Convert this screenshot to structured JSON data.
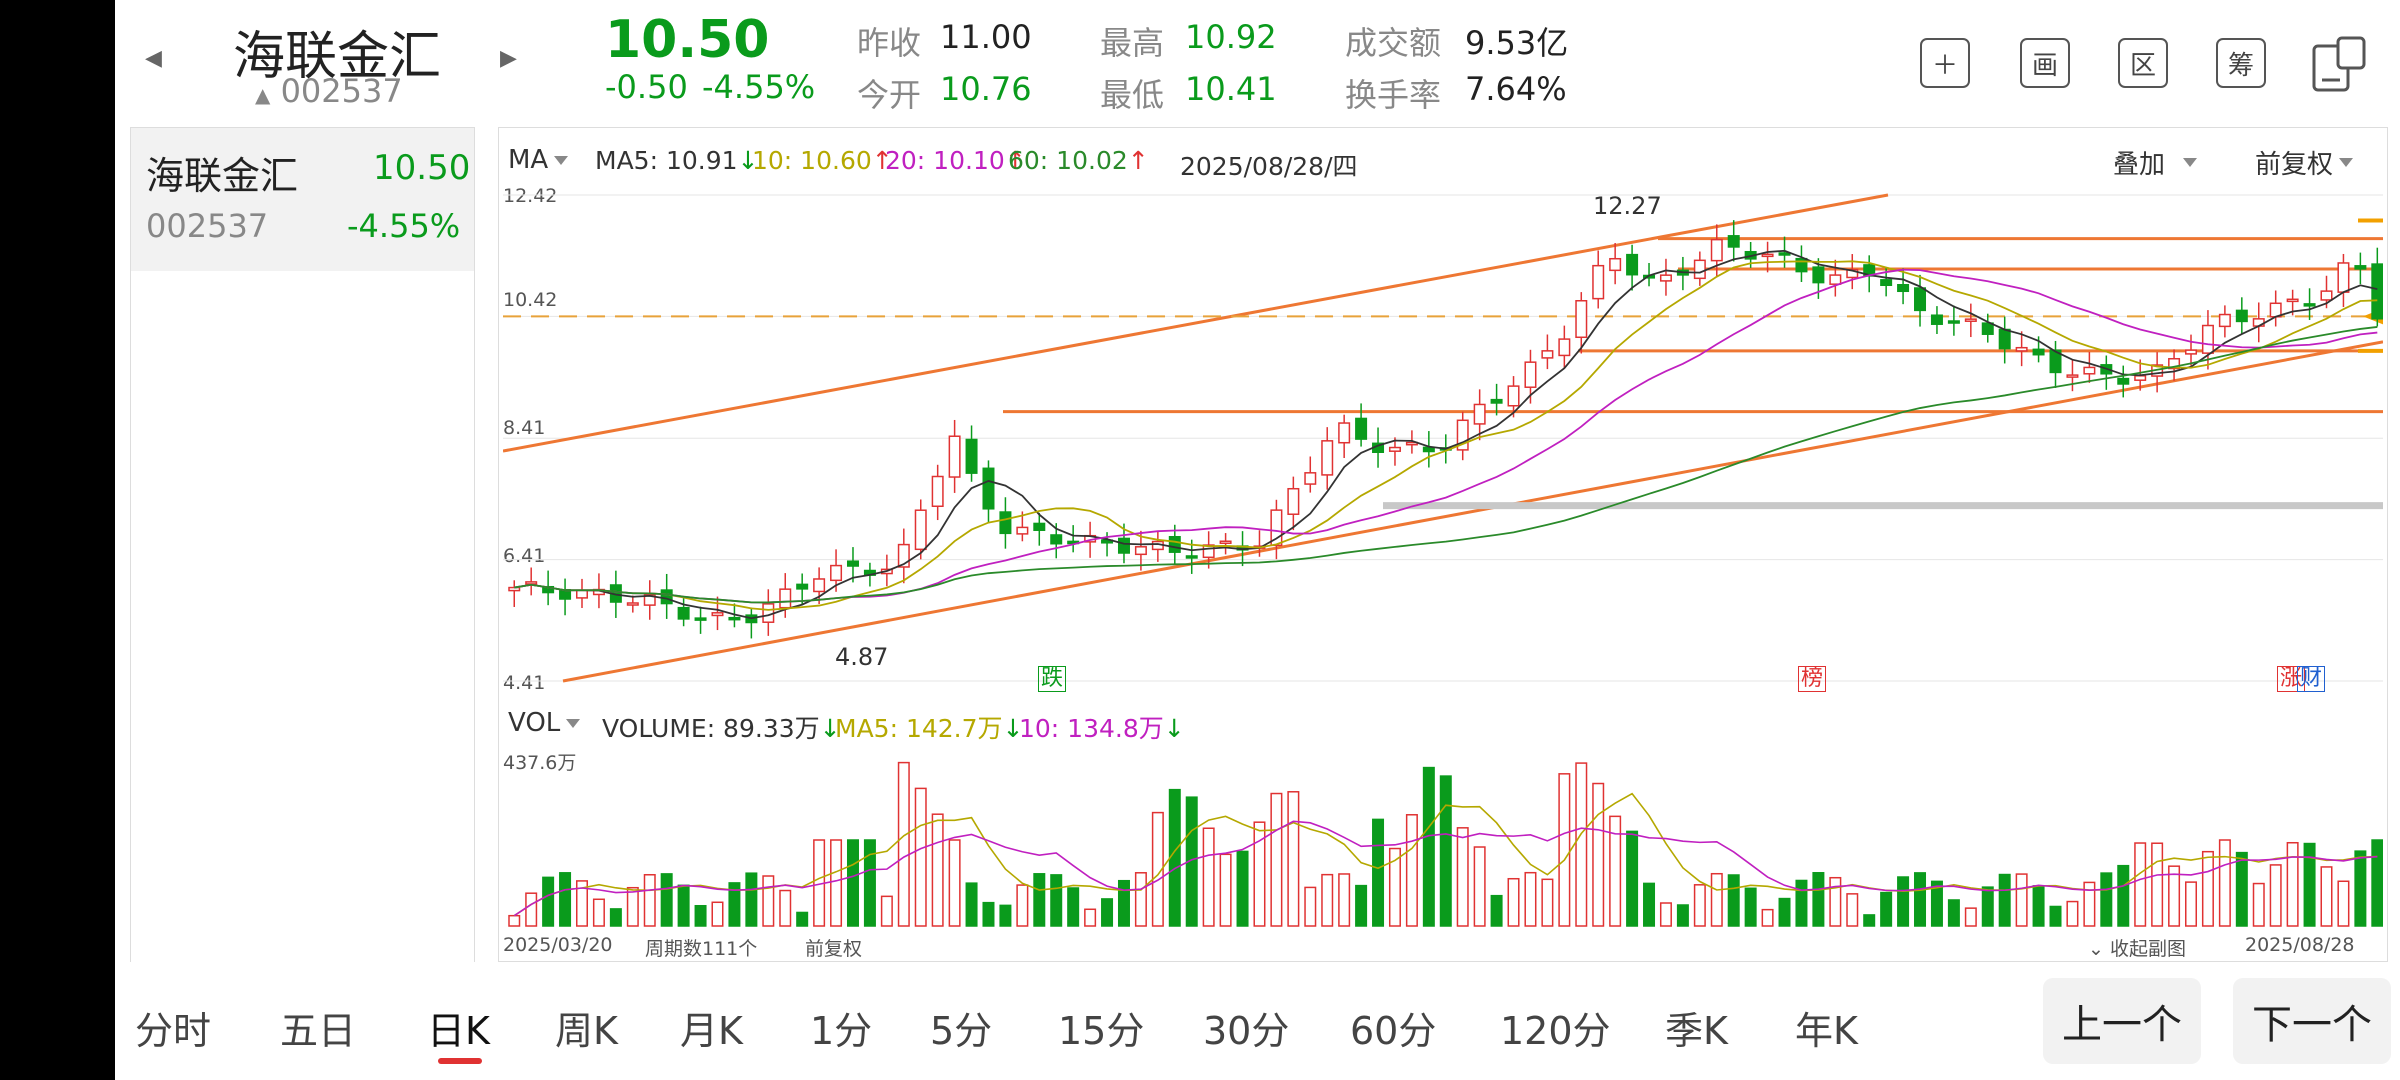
{
  "header": {
    "stock_name": "海联金汇",
    "stock_code": "002537",
    "price": "10.50",
    "change": "-0.50",
    "change_pct": "-4.55%",
    "quotes": {
      "prev_close_label": "昨收",
      "prev_close": "11.00",
      "open_label": "今开",
      "open": "10.76",
      "high_label": "最高",
      "high": "10.92",
      "low_label": "最低",
      "low": "10.41",
      "amount_label": "成交额",
      "amount": "9.53亿",
      "turnover_label": "换手率",
      "turnover": "7.64%"
    },
    "tools": [
      "plus-icon",
      "draw-icon",
      "region-icon",
      "chip-icon",
      "switch-screen-icon"
    ],
    "tool_labels": {
      "draw": "画",
      "region": "区",
      "chip": "筹"
    }
  },
  "sidebar": {
    "name": "海联金汇",
    "price": "10.50",
    "code": "002537",
    "change_pct": "-4.55%"
  },
  "chart": {
    "indicator": "MA",
    "ma5": "MA5: 10.91",
    "ma10": "10: 10.60",
    "ma20": "20: 10.10",
    "ma60": "60: 10.02",
    "date": "2025/08/28/四",
    "overlay": "叠加",
    "adjust": "前复权",
    "y_ticks": [
      "12.42",
      "10.42",
      "8.41",
      "6.41",
      "4.41"
    ],
    "high_marker": "12.27",
    "low_marker": "4.87",
    "tag_fall": "跌",
    "tag_list": "榜",
    "tag_rise": "涨",
    "tag_fin": "财",
    "colors": {
      "up": "#e03232",
      "down": "#0a9b1c",
      "ma5": "#333333",
      "ma10": "#b5a800",
      "ma20": "#c020c0",
      "ma60": "#2a8a2a",
      "trend": "#ee7733"
    }
  },
  "volume": {
    "indicator": "VOL",
    "volume": "VOLUME: 89.33万",
    "ma5": "MA5: 142.7万",
    "ma10": "10: 134.8万",
    "max_tick": "437.6万",
    "start_date": "2025/03/20",
    "period_count": "周期数111个",
    "adjust": "前复权",
    "collapse": "收起副图",
    "end_date": "2025/08/28"
  },
  "tabs": [
    "分时",
    "五日",
    "日K",
    "周K",
    "月K",
    "1分",
    "5分",
    "15分",
    "30分",
    "60分",
    "120分",
    "季K",
    "年K"
  ],
  "active_tab": "日K",
  "buttons": {
    "prev": "上一个",
    "next": "下一个"
  }
}
